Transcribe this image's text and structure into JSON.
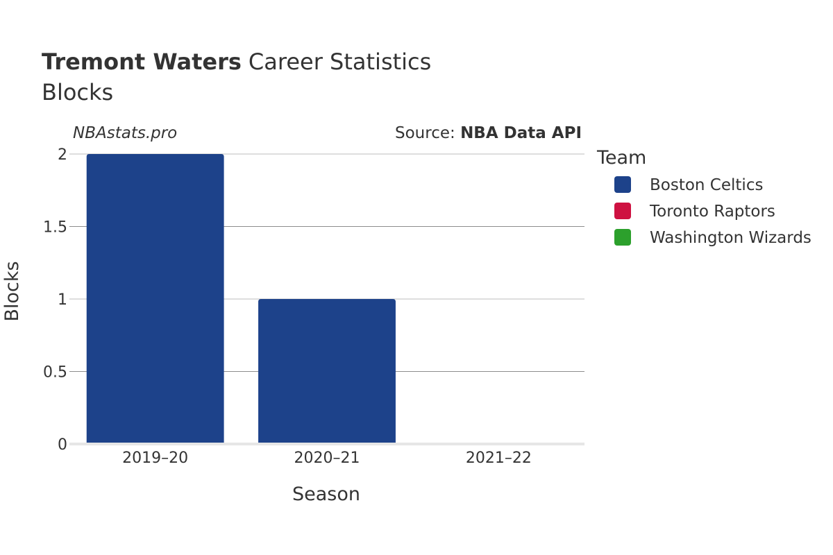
{
  "header": {
    "title_bold": "Tremont Waters",
    "title_rest": "Career Statistics",
    "subtitle": "Blocks",
    "watermark": "NBAstats.pro",
    "source_prefix": "Source: ",
    "source_name": "NBA Data API"
  },
  "legend": {
    "title": "Team",
    "items": [
      {
        "label": "Boston Celtics",
        "color": "#1d428a"
      },
      {
        "label": "Toronto Raptors",
        "color": "#ce1141"
      },
      {
        "label": "Washington Wizards",
        "color": "#2ca02c"
      }
    ]
  },
  "chart_data": {
    "type": "bar",
    "title": "Tremont Waters Career Statistics",
    "subtitle": "Blocks",
    "xlabel": "Season",
    "ylabel": "Blocks",
    "categories": [
      "2019–20",
      "2020–21",
      "2021–22"
    ],
    "series": [
      {
        "name": "Boston Celtics",
        "color": "#1d428a",
        "values": [
          2,
          1,
          0
        ]
      },
      {
        "name": "Toronto Raptors",
        "color": "#ce1141",
        "values": [
          0,
          0,
          0
        ]
      },
      {
        "name": "Washington Wizards",
        "color": "#2ca02c",
        "values": [
          0,
          0,
          0
        ]
      }
    ],
    "ylim": [
      0,
      2
    ],
    "yticks": [
      0,
      0.5,
      1,
      1.5,
      2
    ],
    "ytick_labels": [
      "0",
      "0.5",
      "1",
      "1.5",
      "2"
    ],
    "grid": true,
    "legend_position": "right"
  }
}
